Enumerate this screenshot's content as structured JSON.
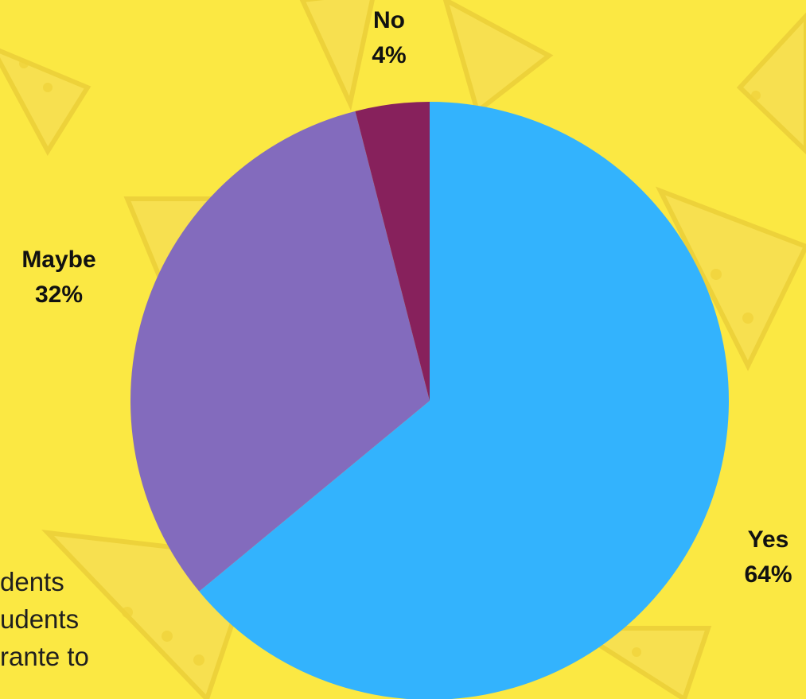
{
  "colors": {
    "background": "#fbe843",
    "pattern": "#f5d93a",
    "yes": "#33b3fd",
    "maybe": "#836bbd",
    "no": "#87215c"
  },
  "background_pattern": "lemon-slice-pattern",
  "side_text": [
    "dents",
    "udents",
    "rante to"
  ],
  "chart_data": {
    "type": "pie",
    "title": "",
    "start_angle_deg": 0,
    "direction": "clockwise",
    "slices": [
      {
        "label": "Yes",
        "value": 64,
        "value_label": "64%",
        "color": "#33b3fd"
      },
      {
        "label": "Maybe",
        "value": 32,
        "value_label": "32%",
        "color": "#836bbd"
      },
      {
        "label": "No",
        "value": 4,
        "value_label": "4%",
        "color": "#87215c"
      }
    ]
  }
}
